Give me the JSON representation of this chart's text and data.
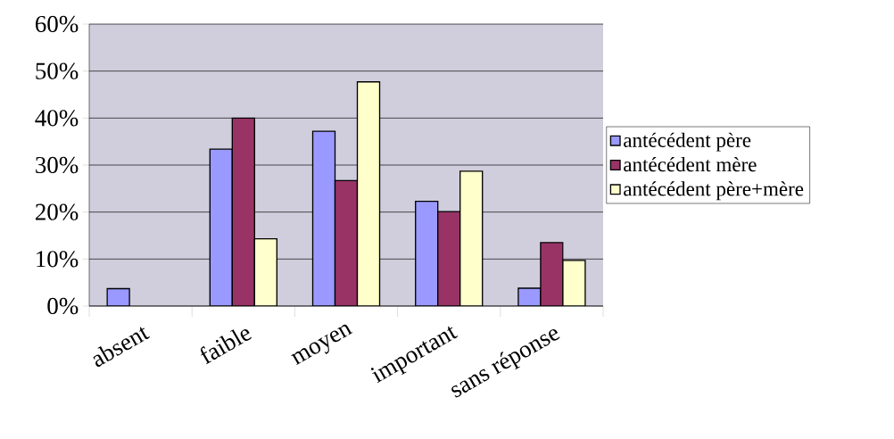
{
  "chart_data": {
    "type": "bar",
    "categories": [
      "absent",
      "faible",
      "moyen",
      "important",
      "sans réponse"
    ],
    "series": [
      {
        "name": "antécédent père",
        "color": "#9999ff",
        "values": [
          3.7,
          33.4,
          37.2,
          22.3,
          3.8
        ]
      },
      {
        "name": "antécédent mère",
        "color": "#993366",
        "values": [
          null,
          40,
          26.7,
          20.1,
          13.5
        ]
      },
      {
        "name": "antécédent père+mère",
        "color": "#ffffcc",
        "values": [
          null,
          14.3,
          47.7,
          28.7,
          9.7
        ]
      }
    ],
    "ylim": [
      0,
      60
    ],
    "yticks": [
      {
        "value": 0,
        "label": "0%"
      },
      {
        "value": 10,
        "label": "10%"
      },
      {
        "value": 20,
        "label": "20%"
      },
      {
        "value": 30,
        "label": "30%"
      },
      {
        "value": 40,
        "label": "40%"
      },
      {
        "value": 50,
        "label": "50%"
      },
      {
        "value": 60,
        "label": "60%"
      }
    ],
    "grid": "y",
    "legend": "right"
  }
}
